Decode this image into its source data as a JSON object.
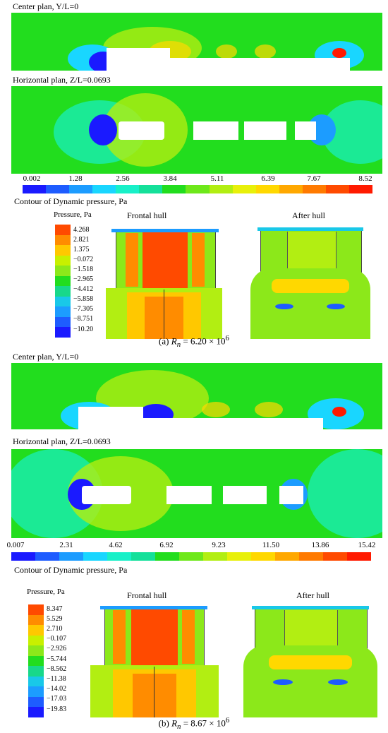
{
  "panel_a": {
    "center_title": "Center plan, Y/L=0",
    "horizontal_title": "Horizontal plan, Z/L=0.0693",
    "colorbar_ticks": [
      "0.002",
      "1.28",
      "2.56",
      "3.84",
      "5.11",
      "6.39",
      "7.67",
      "8.52"
    ],
    "contour_title": "Contour of Dynamic pressure, Pa",
    "pressure_title": "Pressure, Pa",
    "pressure_ticks": [
      "4.268",
      "2.821",
      "1.375",
      "−0.072",
      "−1.518",
      "−2.965",
      "−4.412",
      "−5.858",
      "−7.305",
      "−8.751",
      "−10.20"
    ],
    "frontal_label": "Frontal hull",
    "after_label": "After hull",
    "caption_prefix": "(a)",
    "caption_var": "R",
    "caption_sub": "n",
    "caption_eq": " = 6.20 × 10",
    "caption_exp": "6"
  },
  "panel_b": {
    "center_title": "Center plan, Y/L=0",
    "horizontal_title": "Horizontal plan, Z/L=0.0693",
    "colorbar_ticks": [
      "0.007",
      "2.31",
      "4.62",
      "6.92",
      "9.23",
      "11.50",
      "13.86",
      "15.42"
    ],
    "contour_title": "Contour of Dynamic pressure, Pa",
    "pressure_title": "Pressure, Pa",
    "pressure_ticks": [
      "8.347",
      "5.529",
      "2.710",
      "−0.107",
      "−2.926",
      "−5.744",
      "−8.562",
      "−11.38",
      "−14.02",
      "−17.03",
      "−19.83"
    ],
    "frontal_label": "Frontal hull",
    "after_label": "After hull",
    "caption_prefix": "(b)",
    "caption_var": "R",
    "caption_sub": "n",
    "caption_eq": " = 8.67 × 10",
    "caption_exp": "6"
  },
  "colors": {
    "dynamic_scale": [
      "#1a1aff",
      "#1e5cff",
      "#1c9cff",
      "#19d6ff",
      "#18f0c8",
      "#14e09a",
      "#22dd1e",
      "#6ee81a",
      "#b2ee12",
      "#e8f00a",
      "#ffd800",
      "#ffa800",
      "#ff7a00",
      "#ff4a00",
      "#ff1a00"
    ],
    "pressure_scale": [
      "#ff4a00",
      "#ff8c00",
      "#ffc800",
      "#c8f000",
      "#8ce81a",
      "#22dd1e",
      "#18d88a",
      "#19c8e8",
      "#1c9cff",
      "#1e5cff",
      "#1a1aff"
    ]
  }
}
